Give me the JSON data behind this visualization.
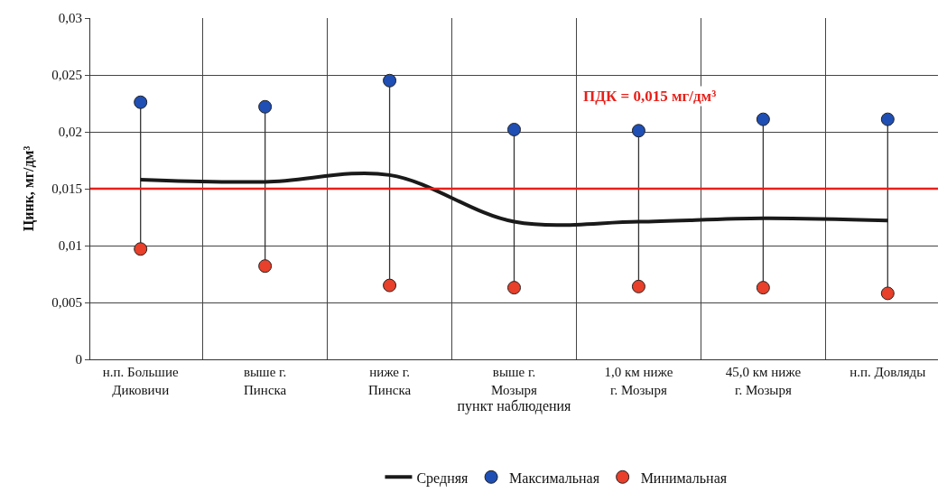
{
  "chart_data": {
    "type": "line",
    "categories": [
      "н.п. Большие Диковичи",
      "выше г. Пинска",
      "ниже г. Пинска",
      "выше г. Мозыря",
      "1,0 км ниже г. Мозыря",
      "45,0 км ниже г. Мозыря",
      "н.п. Довляды"
    ],
    "xlabel": "пункт наблюдения",
    "ylabel": "Цинк, мг/дм³",
    "series": [
      {
        "name": "Средняя",
        "color": "#1a1a1a",
        "marker": "none",
        "line_style": "solid",
        "values": [
          0.0158,
          0.0156,
          0.0162,
          0.0121,
          0.0121,
          0.0124,
          0.0122
        ]
      },
      {
        "name": "Максимальная",
        "type": "scatter",
        "color": "#1f4fb4",
        "marker": "circle",
        "values": [
          0.0226,
          0.0222,
          0.0245,
          0.0202,
          0.0201,
          0.0211,
          0.0211
        ]
      },
      {
        "name": "Минимальная",
        "type": "scatter",
        "color": "#e8402a",
        "marker": "circle",
        "values": [
          0.0097,
          0.0082,
          0.0065,
          0.0063,
          0.0064,
          0.0063,
          0.0058
        ]
      }
    ],
    "ylim": [
      0,
      0.03
    ],
    "yticks": [
      0,
      {
        "value": 0.005,
        "label": "0,005"
      },
      {
        "value": 0.01,
        "label": "0,01"
      },
      {
        "value": 0.015,
        "label": "0,015"
      },
      {
        "value": 0.02,
        "label": "0,02"
      },
      {
        "value": 0.025,
        "label": "0,025"
      },
      {
        "value": 0.03,
        "label": "0,03"
      }
    ],
    "ref_lines": [
      {
        "axis": "y",
        "value": 0.015,
        "label": "ПДК = 0,015 мг/дм³",
        "color": "#e8201a",
        "line_style": "solid"
      }
    ],
    "grid": true,
    "legend": "bottom"
  }
}
